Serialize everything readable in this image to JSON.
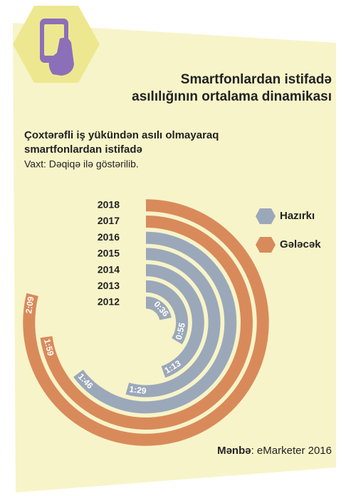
{
  "chart_data": {
    "type": "radial_bar",
    "title": [
      "Smartfonlardan  istifadə",
      "asılılığının ortalama dinamikası"
    ],
    "subtitle": [
      "Çoxtərəfli iş yükündən asılı olmayaraq",
      "smartfonlardan istifadə"
    ],
    "note": "Vaxt: Dəqiqə ilə göstərilib.",
    "categories": [
      "2012",
      "2013",
      "2014",
      "2015",
      "2016",
      "2017",
      "2018"
    ],
    "series": [
      {
        "name": "Hazırkı",
        "color": "#9ba8ba",
        "values": [
          36,
          55,
          73,
          89,
          106,
          null,
          null
        ],
        "value_labels": [
          "0:36",
          "0:55",
          "1:13",
          "1:29",
          "1:46",
          null,
          null
        ]
      },
      {
        "name": "Gələcək",
        "color": "#d98a5b",
        "values": [
          null,
          null,
          null,
          null,
          null,
          119,
          129
        ],
        "value_labels": [
          null,
          null,
          null,
          null,
          null,
          "1:59",
          "2:09"
        ]
      }
    ],
    "source_label": "Mənbə",
    "source": ": eMarketer 2016"
  }
}
